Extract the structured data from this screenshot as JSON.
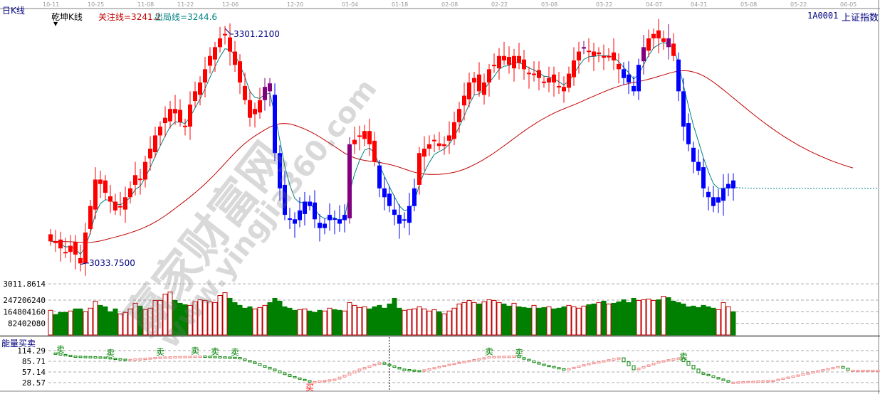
{
  "header": {
    "period_label": "日K线",
    "indicator_name": "乾坤K线",
    "focus_line": "关注线=3241.2",
    "exit_line": "出局线=3244.6",
    "symbol": "1A0001",
    "symbol_name": "上证指数",
    "energy_title": "能量买卖"
  },
  "watermark": {
    "name": "赢家财富网",
    "url": "www.yingjia360.com"
  },
  "colors": {
    "up": "#ff0000",
    "down_trend": "#0000ff",
    "transition": "#800080",
    "vol_up": "#c00000",
    "vol_down": "#008000",
    "ma_short": "#008080",
    "ma_long": "#c00000",
    "accent_text": "#000080"
  },
  "chart_data": {
    "type": "candlestick",
    "x_ticks": [
      {
        "index": 0,
        "label": "10-11"
      },
      {
        "index": 9,
        "label": "10-25"
      },
      {
        "index": 19,
        "label": "11-08"
      },
      {
        "index": 27,
        "label": "11-22"
      },
      {
        "index": 36,
        "label": "12-06"
      },
      {
        "index": 49,
        "label": "12-20"
      },
      {
        "index": 60,
        "label": "01-04"
      },
      {
        "index": 70,
        "label": "01-18"
      },
      {
        "index": 80,
        "label": "02-08"
      },
      {
        "index": 90,
        "label": "02-22"
      },
      {
        "index": 100,
        "label": "03-08"
      },
      {
        "index": 111,
        "label": "03-22"
      },
      {
        "index": 121,
        "label": "04-07"
      },
      {
        "index": 130,
        "label": "04-21"
      },
      {
        "index": 140,
        "label": "05-08"
      },
      {
        "index": 150,
        "label": "05-22"
      },
      {
        "index": 160,
        "label": "06-05"
      }
    ],
    "price_axis_label": "3011.8614",
    "price_axis_value": 3011.8614,
    "high_annotation": {
      "index": 35,
      "value": 3301.21,
      "label": "3301.2100"
    },
    "low_annotation": {
      "index": 6,
      "value": 3033.75,
      "label": "3033.7500"
    },
    "closes": [
      3060,
      3058,
      3052,
      3048,
      3055,
      3045,
      3035,
      3070,
      3100,
      3130,
      3125,
      3115,
      3105,
      3095,
      3100,
      3110,
      3120,
      3135,
      3130,
      3150,
      3165,
      3180,
      3190,
      3200,
      3210,
      3205,
      3195,
      3190,
      3215,
      3230,
      3240,
      3255,
      3270,
      3280,
      3290,
      3295,
      3275,
      3260,
      3240,
      3220,
      3200,
      3210,
      3220,
      3235,
      3230,
      3160,
      3120,
      3090,
      3085,
      3080,
      3095,
      3105,
      3100,
      3085,
      3075,
      3080,
      3090,
      3085,
      3080,
      3090,
      3170,
      3175,
      3180,
      3185,
      3170,
      3150,
      3120,
      3110,
      3100,
      3090,
      3080,
      3085,
      3100,
      3120,
      3160,
      3165,
      3170,
      3175,
      3168,
      3170,
      3180,
      3195,
      3210,
      3225,
      3240,
      3245,
      3230,
      3240,
      3255,
      3260,
      3270,
      3265,
      3260,
      3270,
      3262,
      3255,
      3250,
      3250,
      3245,
      3240,
      3245,
      3240,
      3235,
      3230,
      3250,
      3265,
      3275,
      3280,
      3275,
      3270,
      3272,
      3270,
      3270,
      3265,
      3255,
      3245,
      3240,
      3230,
      3260,
      3280,
      3290,
      3295,
      3290,
      3290,
      3280,
      3270,
      3230,
      3190,
      3170,
      3150,
      3140,
      3120,
      3110,
      3100,
      3110,
      3120,
      3125,
      3120
    ],
    "blue_ranges": [
      [
        45,
        59
      ],
      [
        66,
        73
      ],
      [
        115,
        118
      ],
      [
        126,
        137
      ]
    ],
    "purple_indices": [
      43,
      44,
      60,
      107,
      119,
      124
    ],
    "volume_ticks": [
      {
        "value": 82402080,
        "label": "82402080"
      },
      {
        "value": 164804160,
        "label": "164804160"
      },
      {
        "value": 247206240,
        "label": "247206240"
      }
    ],
    "volumes": [
      175000000.0,
      145000000.0,
      160000000.0,
      160000000.0,
      170000000.0,
      185000000.0,
      185000000.0,
      165000000.0,
      190000000.0,
      240000000.0,
      210000000.0,
      200000000.0,
      165000000.0,
      185000000.0,
      150000000.0,
      160000000.0,
      185000000.0,
      225000000.0,
      205000000.0,
      180000000.0,
      190000000.0,
      245000000.0,
      245000000.0,
      290000000.0,
      305000000.0,
      245000000.0,
      225000000.0,
      215000000.0,
      210000000.0,
      235000000.0,
      250000000.0,
      245000000.0,
      235000000.0,
      230000000.0,
      280000000.0,
      300000000.0,
      260000000.0,
      230000000.0,
      210000000.0,
      190000000.0,
      200000000.0,
      185000000.0,
      195000000.0,
      210000000.0,
      230000000.0,
      260000000.0,
      240000000.0,
      200000000.0,
      190000000.0,
      175000000.0,
      180000000.0,
      185000000.0,
      170000000.0,
      160000000.0,
      175000000.0,
      170000000.0,
      190000000.0,
      180000000.0,
      175000000.0,
      170000000.0,
      230000000.0,
      210000000.0,
      195000000.0,
      200000000.0,
      185000000.0,
      200000000.0,
      210000000.0,
      190000000.0,
      220000000.0,
      260000000.0,
      190000000.0,
      175000000.0,
      180000000.0,
      185000000.0,
      200000000.0,
      185000000.0,
      170000000.0,
      180000000.0,
      165000000.0,
      150000000.0,
      170000000.0,
      190000000.0,
      220000000.0,
      230000000.0,
      245000000.0,
      230000000.0,
      220000000.0,
      235000000.0,
      250000000.0,
      245000000.0,
      230000000.0,
      220000000.0,
      205000000.0,
      225000000.0,
      200000000.0,
      195000000.0,
      190000000.0,
      210000000.0,
      190000000.0,
      195000000.0,
      200000000.0,
      185000000.0,
      190000000.0,
      200000000.0,
      210000000.0,
      200000000.0,
      190000000.0,
      205000000.0,
      215000000.0,
      220000000.0,
      230000000.0,
      240000000.0,
      220000000.0,
      225000000.0,
      235000000.0,
      250000000.0,
      230000000.0,
      260000000.0,
      245000000.0,
      250000000.0,
      255000000.0,
      245000000.0,
      250000000.0,
      275000000.0,
      265000000.0,
      240000000.0,
      230000000.0,
      220000000.0,
      200000000.0,
      205000000.0,
      195000000.0,
      210000000.0,
      200000000.0,
      190000000.0,
      180000000.0,
      230000000.0,
      200000000.0,
      165000000.0
    ],
    "energy_ticks": [
      {
        "value": 114.29,
        "label": "114.29"
      },
      {
        "value": 85.71,
        "label": "85.71"
      },
      {
        "value": 57.14,
        "label": "57.14"
      },
      {
        "value": 28.57,
        "label": "28.57"
      }
    ],
    "energy_points": [
      [
        0,
        108
      ],
      [
        4,
        100
      ],
      [
        10,
        97
      ],
      [
        15,
        90
      ],
      [
        22,
        97
      ],
      [
        30,
        100
      ],
      [
        37,
        96
      ],
      [
        40,
        84
      ],
      [
        44,
        65
      ],
      [
        48,
        45
      ],
      [
        52,
        30
      ],
      [
        57,
        38
      ],
      [
        62,
        65
      ],
      [
        66,
        82
      ],
      [
        70,
        65
      ],
      [
        74,
        60
      ],
      [
        80,
        78
      ],
      [
        88,
        98
      ],
      [
        93,
        100
      ],
      [
        98,
        78
      ],
      [
        103,
        63
      ],
      [
        108,
        80
      ],
      [
        114,
        95
      ],
      [
        117,
        63
      ],
      [
        122,
        85
      ],
      [
        126,
        95
      ],
      [
        130,
        55
      ],
      [
        136,
        30
      ],
      [
        137,
        30
      ],
      [
        145,
        35
      ],
      [
        152,
        55
      ],
      [
        158,
        72
      ],
      [
        160,
        62
      ],
      [
        170,
        62
      ]
    ],
    "sell_marks": [
      2,
      12,
      22,
      29,
      33,
      37,
      88,
      94,
      127
    ],
    "buy_marks": [
      52
    ],
    "cursor_index": 68
  }
}
